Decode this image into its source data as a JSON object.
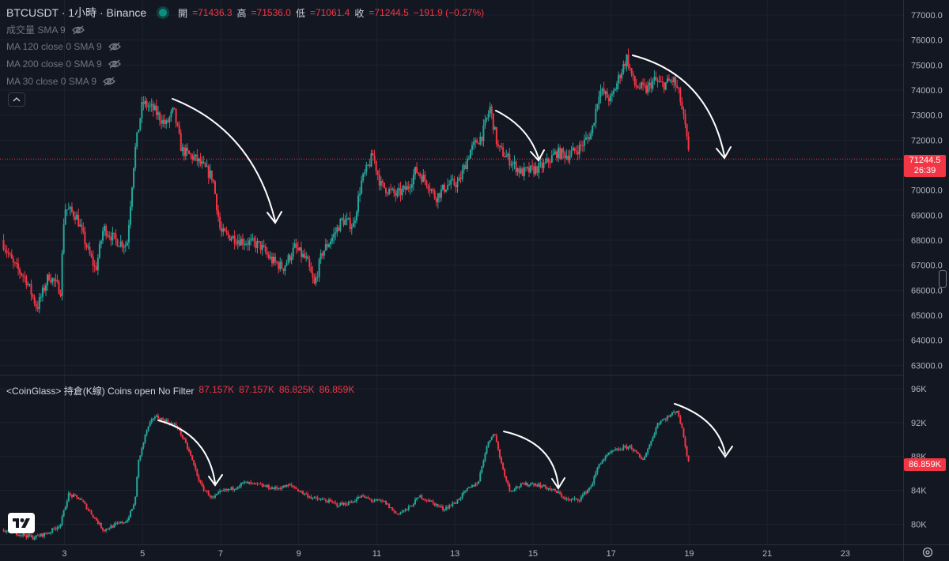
{
  "header": {
    "symbol": "BTCUSDT · 1小時 · Binance",
    "open_label": "開",
    "open_value": "=71436.3",
    "high_label": "高",
    "high_value": "=71536.0",
    "low_label": "低",
    "low_value": "=71061.4",
    "close_label": "收",
    "close_value": "=71244.5",
    "change": "−191.9 (−0.27%)"
  },
  "indicators": [
    {
      "label": "成交量 SMA 9"
    },
    {
      "label": "MA 120 close 0 SMA 9"
    },
    {
      "label": "MA 200 close 0 SMA 9"
    },
    {
      "label": "MA 30 close 0 SMA 9"
    }
  ],
  "oi_header": {
    "title": "<CoinGlass> 持倉(K線) Coins open No Filter",
    "values": [
      "87.157K",
      "87.157K",
      "86.825K",
      "86.859K"
    ]
  },
  "price_tag": {
    "price": "71244.5",
    "countdown": "26:39"
  },
  "oi_tag": "86.859K",
  "colors": {
    "background": "#131722",
    "up": "#26a69a",
    "down": "#f23645",
    "grid": "#1e222d",
    "text": "#b2b5be"
  },
  "icons": {
    "indicator_hidden": "eye-slash-icon",
    "collapse": "chevron-up-icon",
    "settings": "gear-icon",
    "logo": "tradingview-logo"
  },
  "chart_data": [
    {
      "type": "candlestick",
      "title": "BTCUSDT 1小時 Binance",
      "x_tick_labels": [
        "3",
        "5",
        "7",
        "9",
        "11",
        "13",
        "15",
        "17",
        "19",
        "21",
        "23"
      ],
      "x_ticks_day": [
        3,
        5,
        7,
        9,
        11,
        13,
        15,
        17,
        19,
        21,
        23
      ],
      "xlim_day": [
        1.35,
        24.5
      ],
      "ylim": [
        62600,
        77600
      ],
      "y_tick_labels": [
        "63000.0",
        "64000.0",
        "65000.0",
        "66000.0",
        "67000.0",
        "68000.0",
        "69000.0",
        "70000.0",
        "71000.0",
        "72000.0",
        "73000.0",
        "74000.0",
        "75000.0",
        "76000.0",
        "77000.0"
      ],
      "y_ticks": [
        63000,
        64000,
        65000,
        66000,
        67000,
        68000,
        69000,
        70000,
        71000,
        72000,
        73000,
        74000,
        75000,
        76000,
        77000
      ],
      "last_price": 71244.5,
      "close_path": [
        {
          "day": 1.4,
          "close": 68000
        },
        {
          "day": 1.7,
          "close": 67000
        },
        {
          "day": 2.0,
          "close": 66500
        },
        {
          "day": 2.3,
          "close": 65300
        },
        {
          "day": 2.6,
          "close": 66600
        },
        {
          "day": 2.9,
          "close": 66000
        },
        {
          "day": 3.0,
          "close": 69300
        },
        {
          "day": 3.3,
          "close": 69000
        },
        {
          "day": 3.6,
          "close": 67600
        },
        {
          "day": 3.8,
          "close": 66800
        },
        {
          "day": 4.0,
          "close": 68500
        },
        {
          "day": 4.3,
          "close": 68000
        },
        {
          "day": 4.6,
          "close": 67800
        },
        {
          "day": 4.8,
          "close": 71500
        },
        {
          "day": 5.0,
          "close": 73500
        },
        {
          "day": 5.3,
          "close": 73200
        },
        {
          "day": 5.6,
          "close": 72600
        },
        {
          "day": 5.8,
          "close": 73200
        },
        {
          "day": 6.0,
          "close": 71600
        },
        {
          "day": 6.4,
          "close": 71200
        },
        {
          "day": 6.8,
          "close": 70500
        },
        {
          "day": 7.0,
          "close": 68300
        },
        {
          "day": 7.5,
          "close": 68000
        },
        {
          "day": 8.0,
          "close": 67800
        },
        {
          "day": 8.3,
          "close": 67200
        },
        {
          "day": 8.6,
          "close": 66900
        },
        {
          "day": 8.9,
          "close": 67700
        },
        {
          "day": 9.2,
          "close": 67200
        },
        {
          "day": 9.4,
          "close": 66200
        },
        {
          "day": 9.6,
          "close": 67500
        },
        {
          "day": 9.9,
          "close": 68200
        },
        {
          "day": 10.1,
          "close": 68800
        },
        {
          "day": 10.4,
          "close": 68600
        },
        {
          "day": 10.6,
          "close": 70300
        },
        {
          "day": 10.9,
          "close": 71400
        },
        {
          "day": 11.1,
          "close": 70200
        },
        {
          "day": 11.5,
          "close": 69800
        },
        {
          "day": 11.8,
          "close": 70100
        },
        {
          "day": 12.0,
          "close": 70800
        },
        {
          "day": 12.3,
          "close": 70300
        },
        {
          "day": 12.5,
          "close": 69700
        },
        {
          "day": 12.8,
          "close": 70200
        },
        {
          "day": 13.1,
          "close": 70300
        },
        {
          "day": 13.4,
          "close": 71600
        },
        {
          "day": 13.7,
          "close": 72200
        },
        {
          "day": 13.9,
          "close": 73300
        },
        {
          "day": 14.1,
          "close": 71700
        },
        {
          "day": 14.4,
          "close": 71200
        },
        {
          "day": 14.7,
          "close": 70700
        },
        {
          "day": 15.0,
          "close": 70800
        },
        {
          "day": 15.3,
          "close": 71000
        },
        {
          "day": 15.6,
          "close": 71500
        },
        {
          "day": 15.9,
          "close": 71400
        },
        {
          "day": 16.2,
          "close": 71700
        },
        {
          "day": 16.5,
          "close": 72300
        },
        {
          "day": 16.7,
          "close": 74000
        },
        {
          "day": 17.0,
          "close": 73600
        },
        {
          "day": 17.2,
          "close": 74500
        },
        {
          "day": 17.4,
          "close": 75300
        },
        {
          "day": 17.6,
          "close": 74200
        },
        {
          "day": 17.9,
          "close": 74000
        },
        {
          "day": 18.1,
          "close": 74400
        },
        {
          "day": 18.3,
          "close": 74200
        },
        {
          "day": 18.6,
          "close": 74400
        },
        {
          "day": 18.75,
          "close": 73800
        },
        {
          "day": 18.9,
          "close": 72500
        },
        {
          "day": 19.0,
          "close": 71244.5
        }
      ]
    },
    {
      "type": "candlestick",
      "title": "<CoinGlass> 持倉(K線) Coins open No Filter",
      "x_tick_labels": [
        "3",
        "5",
        "7",
        "9",
        "11",
        "13",
        "15",
        "17",
        "19",
        "21",
        "23"
      ],
      "x_ticks_day": [
        3,
        5,
        7,
        9,
        11,
        13,
        15,
        17,
        19,
        21,
        23
      ],
      "xlim_day": [
        1.35,
        24.5
      ],
      "ylim": [
        77600,
        97600
      ],
      "unit": "K",
      "y_tick_labels": [
        "80K",
        "84K",
        "88K",
        "92K",
        "96K"
      ],
      "y_ticks": [
        80,
        84,
        88,
        92,
        96
      ],
      "ohlc_last": {
        "open": 87.157,
        "high": 87.157,
        "low": 86.825,
        "close": 86.859
      },
      "close_path": [
        {
          "day": 1.4,
          "close": 79.3
        },
        {
          "day": 1.8,
          "close": 78.9
        },
        {
          "day": 2.2,
          "close": 78.4
        },
        {
          "day": 2.6,
          "close": 79.0
        },
        {
          "day": 2.9,
          "close": 80.0
        },
        {
          "day": 3.1,
          "close": 83.5
        },
        {
          "day": 3.4,
          "close": 83.0
        },
        {
          "day": 3.7,
          "close": 81.2
        },
        {
          "day": 4.0,
          "close": 79.3
        },
        {
          "day": 4.3,
          "close": 79.9
        },
        {
          "day": 4.6,
          "close": 80.4
        },
        {
          "day": 4.8,
          "close": 82.5
        },
        {
          "day": 4.9,
          "close": 87.5
        },
        {
          "day": 5.1,
          "close": 91.0
        },
        {
          "day": 5.3,
          "close": 92.8
        },
        {
          "day": 5.6,
          "close": 92.2
        },
        {
          "day": 5.9,
          "close": 91.5
        },
        {
          "day": 6.2,
          "close": 88.5
        },
        {
          "day": 6.5,
          "close": 84.5
        },
        {
          "day": 6.8,
          "close": 83.0
        },
        {
          "day": 7.0,
          "close": 83.8
        },
        {
          "day": 7.3,
          "close": 84.2
        },
        {
          "day": 7.6,
          "close": 84.9
        },
        {
          "day": 8.0,
          "close": 84.6
        },
        {
          "day": 8.4,
          "close": 84.2
        },
        {
          "day": 8.8,
          "close": 84.6
        },
        {
          "day": 9.1,
          "close": 83.7
        },
        {
          "day": 9.4,
          "close": 83.0
        },
        {
          "day": 9.7,
          "close": 82.8
        },
        {
          "day": 10.0,
          "close": 82.3
        },
        {
          "day": 10.3,
          "close": 82.5
        },
        {
          "day": 10.6,
          "close": 83.3
        },
        {
          "day": 10.9,
          "close": 82.8
        },
        {
          "day": 11.2,
          "close": 82.6
        },
        {
          "day": 11.5,
          "close": 81.2
        },
        {
          "day": 11.8,
          "close": 81.8
        },
        {
          "day": 12.1,
          "close": 83.3
        },
        {
          "day": 12.4,
          "close": 82.6
        },
        {
          "day": 12.7,
          "close": 81.8
        },
        {
          "day": 13.0,
          "close": 82.5
        },
        {
          "day": 13.3,
          "close": 84.0
        },
        {
          "day": 13.6,
          "close": 85.0
        },
        {
          "day": 13.8,
          "close": 89.0
        },
        {
          "day": 14.0,
          "close": 91.0
        },
        {
          "day": 14.2,
          "close": 87.0
        },
        {
          "day": 14.4,
          "close": 84.0
        },
        {
          "day": 14.7,
          "close": 84.6
        },
        {
          "day": 15.0,
          "close": 84.8
        },
        {
          "day": 15.3,
          "close": 84.4
        },
        {
          "day": 15.6,
          "close": 83.8
        },
        {
          "day": 15.9,
          "close": 82.8
        },
        {
          "day": 16.2,
          "close": 83.0
        },
        {
          "day": 16.5,
          "close": 84.6
        },
        {
          "day": 16.7,
          "close": 87.2
        },
        {
          "day": 17.0,
          "close": 88.5
        },
        {
          "day": 17.3,
          "close": 89.0
        },
        {
          "day": 17.5,
          "close": 89.2
        },
        {
          "day": 17.8,
          "close": 87.5
        },
        {
          "day": 18.0,
          "close": 89.5
        },
        {
          "day": 18.2,
          "close": 92.0
        },
        {
          "day": 18.5,
          "close": 92.8
        },
        {
          "day": 18.7,
          "close": 93.5
        },
        {
          "day": 18.85,
          "close": 90.5
        },
        {
          "day": 19.0,
          "close": 86.859
        }
      ]
    }
  ]
}
